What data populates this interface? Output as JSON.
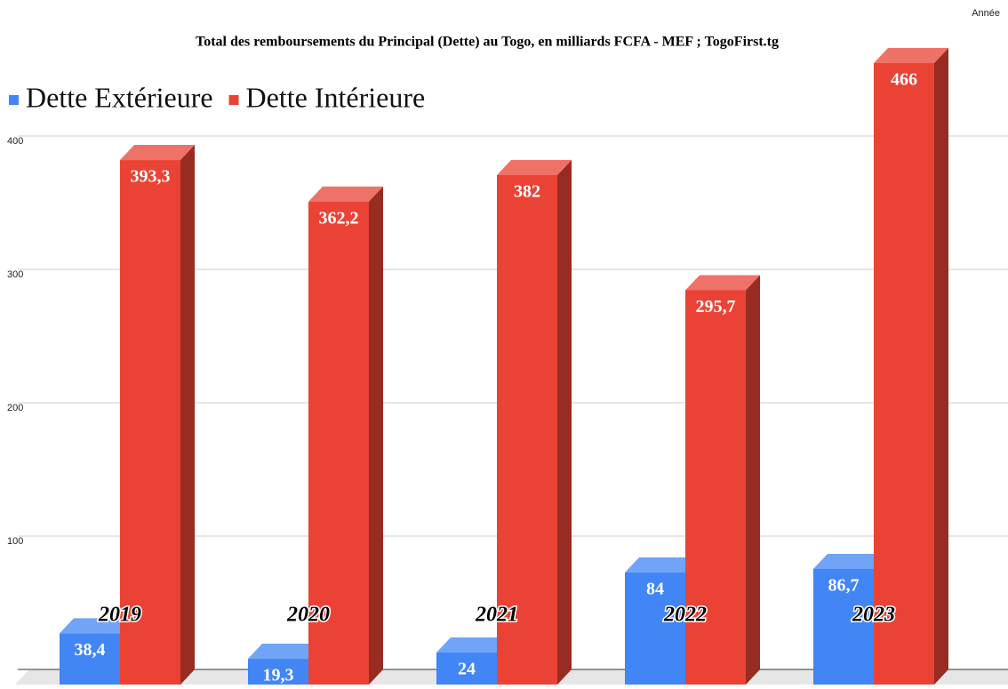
{
  "chart_data": {
    "type": "bar3d",
    "title": "Total des remboursements du Principal (Dette) au Togo, en milliards FCFA - MEF ; TogoFirst.tg",
    "x_label": "Année",
    "categories": [
      "2019",
      "2020",
      "2021",
      "2022",
      "2023"
    ],
    "series": [
      {
        "name": "Dette Extérieure",
        "color": "#4285f4",
        "values": [
          38.4,
          19.3,
          24,
          84,
          86.7
        ],
        "value_labels": [
          "38,4",
          "19,3",
          "24",
          "84",
          "86,7"
        ]
      },
      {
        "name": "Dette Intérieure",
        "color": "#ea4335",
        "values": [
          393.3,
          362.2,
          382,
          295.7,
          466
        ],
        "value_labels": [
          "393,3",
          "362,2",
          "382",
          "295,7",
          "466"
        ]
      }
    ],
    "ylim": [
      0,
      480
    ],
    "yticks": [
      100,
      200,
      300,
      400
    ],
    "grid": true,
    "legend": "top-left"
  }
}
